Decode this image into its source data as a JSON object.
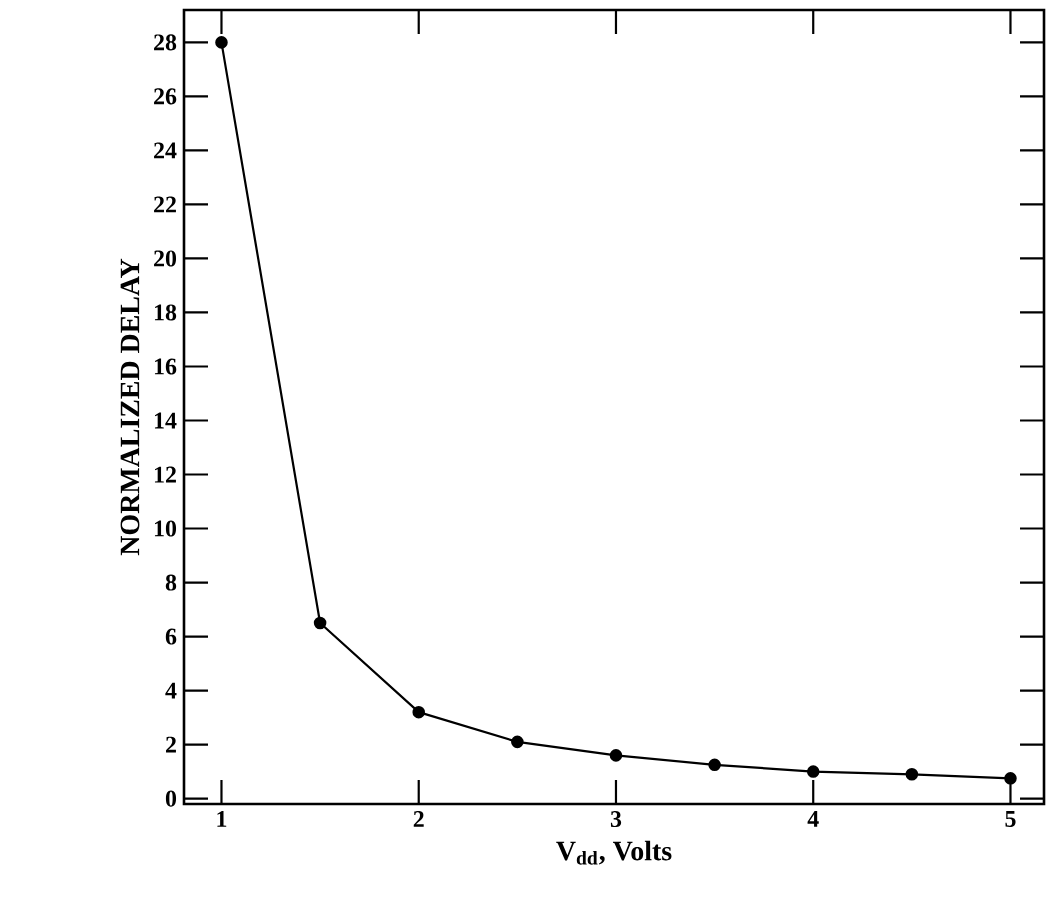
{
  "chart_data": {
    "type": "line",
    "xlabel": "V$_{dd}$, Volts",
    "ylabel": "NORMALIZED DELAY",
    "x": [
      1,
      1.5,
      2,
      2.5,
      3,
      3.5,
      4,
      4.5,
      5
    ],
    "series": [
      {
        "color": "#000000",
        "values": [
          28,
          6.5,
          3.2,
          2.1,
          1.6,
          1.25,
          1.0,
          0.9,
          0.75
        ]
      }
    ],
    "xlim": [
      0.81,
      5.17
    ],
    "ylim": [
      -0.2,
      29.2
    ],
    "xticks": [
      1,
      2,
      3,
      4,
      5
    ],
    "yticks": [
      0,
      2,
      4,
      6,
      8,
      10,
      12,
      14,
      16,
      18,
      20,
      22,
      24,
      26,
      28
    ],
    "grid": false,
    "marker": "circle",
    "line_style": "solid"
  }
}
